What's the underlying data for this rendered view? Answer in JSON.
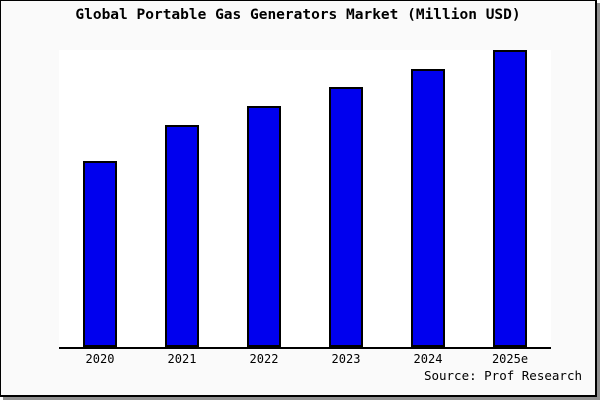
{
  "title": "Global Portable Gas Generators Market (Million USD)",
  "source": "Source: Prof Research",
  "colors": {
    "bar_fill": "#0000ee",
    "bar_border": "#000000",
    "axis": "#000000",
    "plot_background": "#ffffff",
    "canvas_background": "#fafafa",
    "frame_border": "#000000"
  },
  "chart_data": {
    "type": "bar",
    "title": "Global Portable Gas Generators Market (Million USD)",
    "categories": [
      "2020",
      "2021",
      "2022",
      "2023",
      "2024",
      "2025e"
    ],
    "values": [
      62.5,
      74.9,
      81.3,
      87.6,
      93.6,
      100
    ],
    "value_scale": "relative height, tallest bar (2025e) = 100; no y-axis or value labels shown in chart",
    "xlabel": "",
    "ylabel": "",
    "ylim": [
      0,
      100
    ],
    "grid": false,
    "legend": false,
    "y_axis_visible": false,
    "bar_color": "#0000ee",
    "bar_border_color": "#000000",
    "source_note": "Source: Prof Research"
  }
}
